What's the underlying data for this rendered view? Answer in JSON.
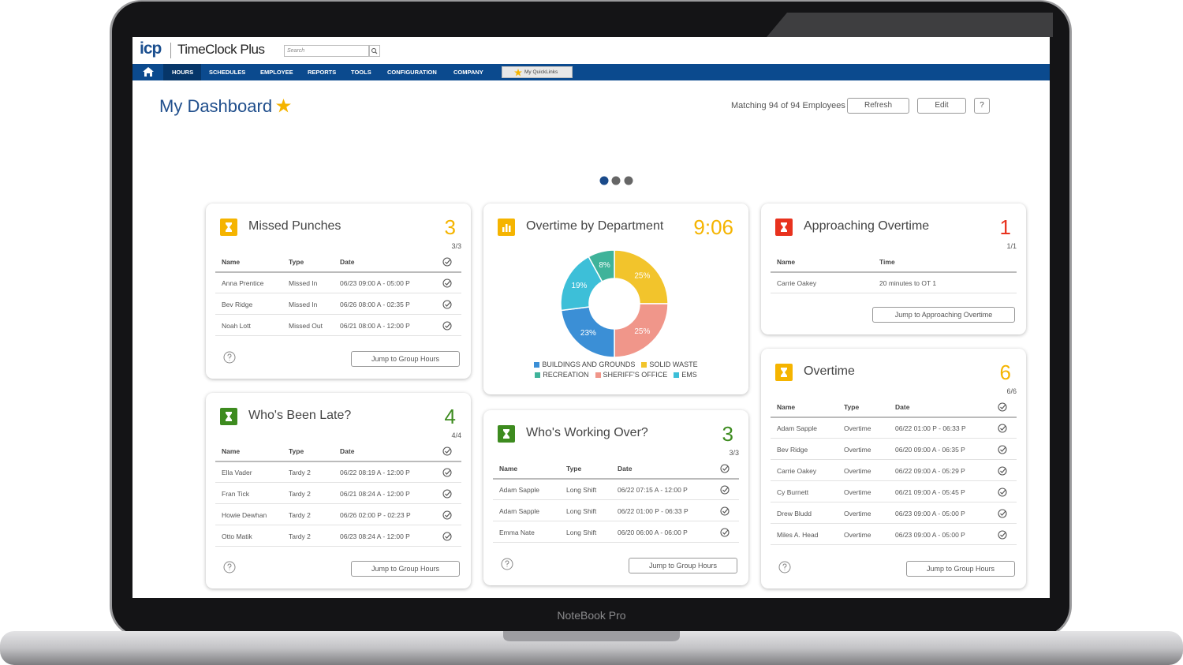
{
  "header": {
    "logo": "icp",
    "product": "TimeClock Plus",
    "search_placeholder": "Search"
  },
  "nav": {
    "items": [
      "HOURS",
      "SCHEDULES",
      "EMPLOYEE",
      "REPORTS",
      "TOOLS",
      "CONFIGURATION",
      "COMPANY"
    ],
    "quicklinks": "My QuickLinks"
  },
  "dashboard": {
    "title": "My Dashboard",
    "matching": "Matching 94 of 94 Employees",
    "buttons": [
      "Refresh",
      "Edit",
      "?"
    ]
  },
  "widgets": [
    {
      "title": "Missed Punches",
      "count": "3",
      "ratio": "3/3",
      "color": "#f5b400",
      "columns": [
        "Name",
        "Type",
        "Date"
      ],
      "rows": [
        [
          "Anna Prentice",
          "Missed In",
          "06/23 09:00 A - 05:00 P"
        ],
        [
          "Bev Ridge",
          "Missed In",
          "06/26 08:00 A - 02:35 P"
        ],
        [
          "Noah Lott",
          "Missed Out",
          "06/21 08:00 A - 12:00 P"
        ]
      ],
      "button": "Jump to Group Hours"
    },
    {
      "title": "Who's Been Late?",
      "count": "4",
      "ratio": "4/4",
      "color": "#3d8b1f",
      "columns": [
        "Name",
        "Type",
        "Date"
      ],
      "rows": [
        [
          "Ella Vader",
          "Tardy 2",
          "06/22 08:19 A - 12:00 P"
        ],
        [
          "Fran Tick",
          "Tardy 2",
          "06/21 08:24 A - 12:00 P"
        ],
        [
          "Howie Dewhan",
          "Tardy 2",
          "06/26 02:00 P - 02:23 P"
        ],
        [
          "Otto Matik",
          "Tardy 2",
          "06/23 08:24 A - 12:00 P"
        ]
      ],
      "button": "Jump to Group Hours"
    },
    {
      "title": "Who's Working Over?",
      "count": "3",
      "ratio": "3/3",
      "color": "#3d8b1f",
      "columns": [
        "Name",
        "Type",
        "Date"
      ],
      "rows": [
        [
          "Adam Sapple",
          "Long Shift",
          "06/22 07:15 A - 12:00 P"
        ],
        [
          "Adam Sapple",
          "Long Shift",
          "06/22 01:00 P - 06:33 P"
        ],
        [
          "Emma Nate",
          "Long Shift",
          "06/20 06:00 A - 06:00 P"
        ]
      ],
      "button": "Jump to Group Hours"
    },
    {
      "title": "Approaching Overtime",
      "count": "1",
      "ratio": "1/1",
      "color": "#e8321e",
      "columns": [
        "Name",
        "Time"
      ],
      "rows": [
        [
          "Carrie Oakey",
          "20 minutes to OT 1"
        ]
      ],
      "button": "Jump to Approaching Overtime"
    },
    {
      "title": "Overtime",
      "count": "6",
      "ratio": "6/6",
      "color": "#f5b400",
      "columns": [
        "Name",
        "Type",
        "Date"
      ],
      "rows": [
        [
          "Adam Sapple",
          "Overtime",
          "06/22 01:00 P - 06:33 P"
        ],
        [
          "Bev Ridge",
          "Overtime",
          "06/20 09:00 A - 06:35 P"
        ],
        [
          "Carrie Oakey",
          "Overtime",
          "06/22 09:00 A - 05:29 P"
        ],
        [
          "Cy Burnett",
          "Overtime",
          "06/21 09:00 A - 05:45 P"
        ],
        [
          "Drew Bludd",
          "Overtime",
          "06/23 09:00 A - 05:00 P"
        ],
        [
          "Miles A. Head",
          "Overtime",
          "06/23 09:00 A - 05:00 P"
        ]
      ],
      "button": "Jump to Group Hours"
    }
  ],
  "chart_data": {
    "type": "donut",
    "title": "Overtime by Department",
    "total": "9:06",
    "total_color": "#f5b400",
    "categories": [
      "BUILDINGS AND GROUNDS",
      "SOLID WASTE",
      "RECREATION",
      "SHERIFF'S OFFICE",
      "EMS"
    ],
    "values": [
      23,
      25,
      8,
      25,
      19
    ],
    "value_labels": [
      "23%",
      "25%",
      "8%",
      "25%",
      "19%"
    ],
    "colors": [
      "#3b8fd6",
      "#f2c42c",
      "#3fb39a",
      "#f0968a",
      "#3dbfd8"
    ]
  },
  "device": {
    "label": "NoteBook Pro"
  }
}
